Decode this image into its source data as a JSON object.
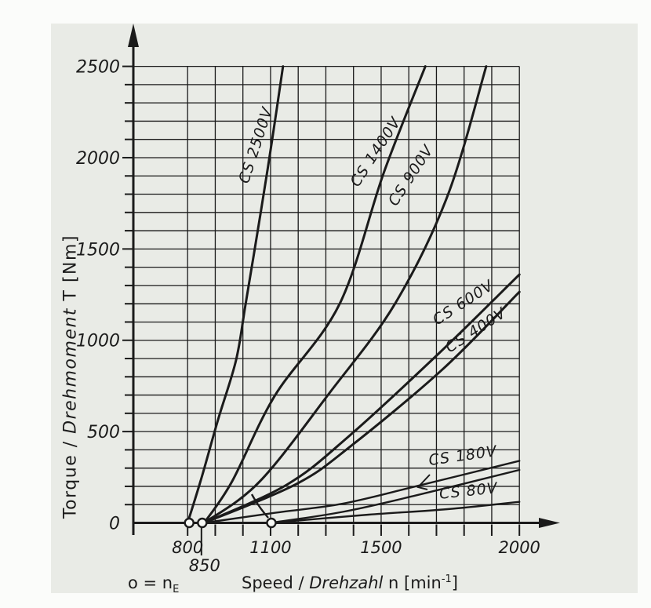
{
  "colors": {
    "panel_background": "#e9ebe6",
    "page_background": "#fbfcfa",
    "line_color": "#1b1b1b",
    "marker_fill": "#f7f9f5"
  },
  "labels": {
    "y_title_plain": "Torque / ",
    "y_title_italic": "Drehmoment",
    "y_title_rest": " T [Nm]",
    "x_title_plain": "Speed / ",
    "x_title_italic": "Drehzahl",
    "x_title_mid": " n [min",
    "x_title_sup": "-1",
    "x_title_end": "]",
    "marker_note_symbol": "o",
    "marker_note_mid": " = n",
    "marker_note_sub": "E"
  },
  "chart_data": {
    "type": "line",
    "title": "",
    "xlabel": "Speed / Drehzahl n [min-1]",
    "ylabel": "Torque / Drehmoment T [Nm]",
    "grid": true,
    "x_axis": {
      "min": 800,
      "max": 2000,
      "minor_step": 100,
      "ticks_major": [
        800,
        1100,
        1500,
        2000
      ],
      "tick_extra": 850
    },
    "y_axis": {
      "min": 0,
      "max": 2500,
      "major_step": 500,
      "minor_step": 100,
      "tick_labels": [
        0,
        500,
        1000,
        1500,
        2000,
        2500
      ]
    },
    "engagement_markers_nE": [
      800,
      850,
      1100
    ],
    "series": [
      {
        "name": "CS 2500V",
        "n_E": 800,
        "points": [
          [
            800,
            0
          ],
          [
            850,
            245
          ],
          [
            910,
            565
          ],
          [
            975,
            890
          ],
          [
            1010,
            1200
          ],
          [
            1065,
            1705
          ],
          [
            1105,
            2090
          ],
          [
            1145,
            2500
          ]
        ]
      },
      {
        "name": "CS 1400V",
        "n_E": 850,
        "points": [
          [
            860,
            0
          ],
          [
            960,
            225
          ],
          [
            1115,
            695
          ],
          [
            1350,
            1200
          ],
          [
            1510,
            1920
          ],
          [
            1660,
            2500
          ]
        ]
      },
      {
        "name": "CS 900V",
        "n_E": 850,
        "points": [
          [
            860,
            0
          ],
          [
            1060,
            225
          ],
          [
            1315,
            715
          ],
          [
            1550,
            1200
          ],
          [
            1740,
            1790
          ],
          [
            1880,
            2500
          ]
        ]
      },
      {
        "name": "CS 600V",
        "n_E": 850,
        "points": [
          [
            860,
            0
          ],
          [
            1160,
            210
          ],
          [
            1380,
            470
          ],
          [
            1710,
            930
          ],
          [
            2000,
            1360
          ]
        ]
      },
      {
        "name": "CS 400V",
        "n_E": 850,
        "points": [
          [
            860,
            0
          ],
          [
            1190,
            210
          ],
          [
            1390,
            420
          ],
          [
            1725,
            845
          ],
          [
            2000,
            1265
          ]
        ]
      },
      {
        "name": "CS 180V",
        "n_E": 850,
        "points": [
          [
            860,
            0
          ],
          [
            1115,
            55
          ],
          [
            1360,
            105
          ],
          [
            1625,
            200
          ],
          [
            2000,
            340
          ]
        ]
      },
      {
        "name": "CS 180V companion (unlabeled, n_E 1100)",
        "n_E": 1100,
        "points": [
          [
            1100,
            0
          ],
          [
            1360,
            60
          ],
          [
            1625,
            150
          ],
          [
            2000,
            290
          ]
        ]
      },
      {
        "name": "CS 80V",
        "n_E": 1100,
        "points": [
          [
            1100,
            0
          ],
          [
            1455,
            45
          ],
          [
            1740,
            75
          ],
          [
            2000,
            115
          ]
        ]
      }
    ],
    "annotations": [
      {
        "name": "leader-arrow-cs-180v"
      },
      {
        "name": "curve-branch-into-1100-marker"
      }
    ]
  }
}
